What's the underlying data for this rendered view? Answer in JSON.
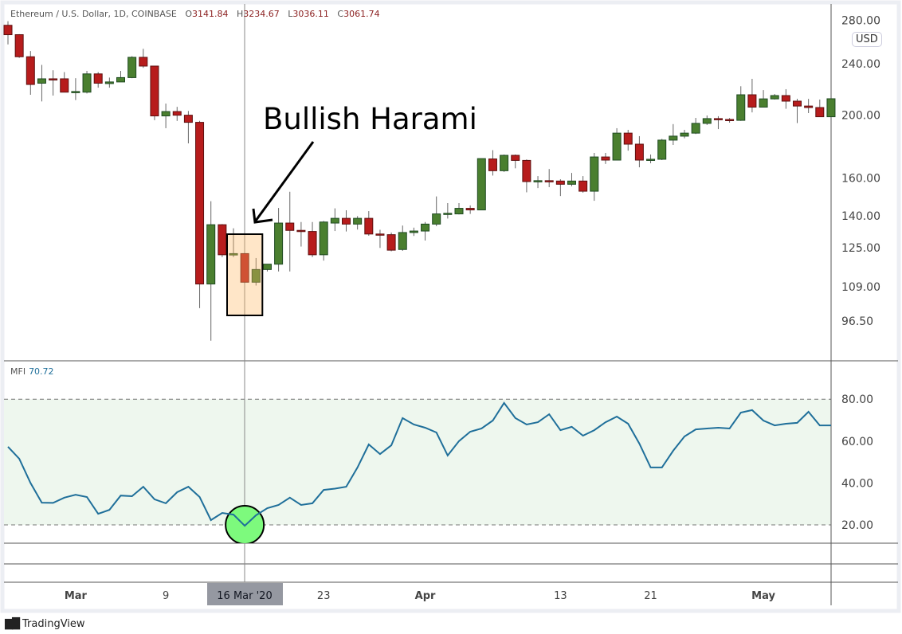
{
  "header": {
    "symbol": "Ethereum / U.S. Dollar, 1D, COINBASE",
    "ohlc": [
      {
        "k": "O",
        "v": "3141.84"
      },
      {
        "k": "H",
        "v": "3234.67"
      },
      {
        "k": "L",
        "v": "3036.11"
      },
      {
        "k": "C",
        "v": "3061.74"
      }
    ]
  },
  "currency_badge": "USD",
  "annotation": {
    "text": "Bullish Harami"
  },
  "mfi": {
    "label": "MFI",
    "value": "70.72"
  },
  "crosshair_label": "16 Mar '20",
  "branding": "TradingView",
  "colors": {
    "up": "#4a7f2f",
    "down": "#b71c1c",
    "mfi_line": "#1f6f9a",
    "mfi_band": "#eef7ee",
    "highlight_box": "#ffe3bf",
    "highlight_circle": "#7dfa7d"
  },
  "chart_data": [
    {
      "type": "candlestick",
      "scale": "log",
      "y_ticks": [
        "280.00",
        "240.00",
        "200.00",
        "160.00",
        "140.00",
        "125.00",
        "109.00",
        "96.50"
      ],
      "y_tick_values": [
        280,
        240,
        200,
        160,
        140,
        125,
        109,
        96.5
      ],
      "x_ticks": [
        {
          "label": "Mar",
          "date": "2020-03-01"
        },
        {
          "label": "9",
          "date": "2020-03-09"
        },
        {
          "label": "23",
          "date": "2020-03-23"
        },
        {
          "label": "Apr",
          "date": "2020-04-01"
        },
        {
          "label": "13",
          "date": "2020-04-13"
        },
        {
          "label": "21",
          "date": "2020-04-21"
        },
        {
          "label": "May",
          "date": "2020-05-01"
        }
      ],
      "crosshair_date": "2020-03-16",
      "highlight_range": [
        "2020-03-15",
        "2020-03-17"
      ],
      "x": [
        "2020-02-24",
        "2020-02-25",
        "2020-02-26",
        "2020-02-27",
        "2020-02-28",
        "2020-02-29",
        "2020-03-01",
        "2020-03-02",
        "2020-03-03",
        "2020-03-04",
        "2020-03-05",
        "2020-03-06",
        "2020-03-07",
        "2020-03-08",
        "2020-03-09",
        "2020-03-10",
        "2020-03-11",
        "2020-03-12",
        "2020-03-13",
        "2020-03-14",
        "2020-03-15",
        "2020-03-16",
        "2020-03-17",
        "2020-03-18",
        "2020-03-19",
        "2020-03-20",
        "2020-03-21",
        "2020-03-22",
        "2020-03-23",
        "2020-03-24",
        "2020-03-25",
        "2020-03-26",
        "2020-03-27",
        "2020-03-28",
        "2020-03-29",
        "2020-03-30",
        "2020-03-31",
        "2020-04-01",
        "2020-04-02",
        "2020-04-03",
        "2020-04-04",
        "2020-04-05",
        "2020-04-06",
        "2020-04-07",
        "2020-04-08",
        "2020-04-09",
        "2020-04-10",
        "2020-04-11",
        "2020-04-12",
        "2020-04-13",
        "2020-04-14",
        "2020-04-15",
        "2020-04-16",
        "2020-04-17",
        "2020-04-18",
        "2020-04-19",
        "2020-04-20",
        "2020-04-21",
        "2020-04-22",
        "2020-04-23",
        "2020-04-24",
        "2020-04-25",
        "2020-04-26",
        "2020-04-27",
        "2020-04-28",
        "2020-04-29",
        "2020-04-30",
        "2020-05-01",
        "2020-05-02",
        "2020-05-03",
        "2020-05-04",
        "2020-05-05",
        "2020-05-06",
        "2020-05-07"
      ],
      "ohlc": [
        [
          275,
          279,
          257,
          266
        ],
        [
          266,
          266.5,
          245,
          246
        ],
        [
          246,
          251,
          215,
          223
        ],
        [
          224,
          239,
          210,
          227.5
        ],
        [
          227.5,
          234.5,
          214.4,
          227
        ],
        [
          227.5,
          233,
          217,
          217
        ],
        [
          217,
          228,
          211,
          217.5
        ],
        [
          217,
          234,
          216,
          231.5
        ],
        [
          231.5,
          233,
          220.5,
          224
        ],
        [
          223.7,
          228.5,
          220.5,
          225
        ],
        [
          225,
          234,
          225,
          228.5
        ],
        [
          228.5,
          246.5,
          228,
          245.5
        ],
        [
          245.5,
          253,
          236.5,
          238
        ],
        [
          238,
          238,
          196.5,
          199.5
        ],
        [
          199.5,
          208.4,
          191,
          202.6
        ],
        [
          202.6,
          206,
          196,
          200
        ],
        [
          200,
          203,
          181,
          195
        ],
        [
          195,
          196,
          101,
          110
        ],
        [
          110,
          147.5,
          90,
          135.7
        ],
        [
          135.7,
          136,
          121,
          122
        ],
        [
          121.9,
          134,
          121,
          122.5
        ],
        [
          122.5,
          122.5,
          110.7,
          110.7
        ],
        [
          110.7,
          120.6,
          109.4,
          115.8
        ],
        [
          115.8,
          118,
          115,
          118
        ],
        [
          118,
          144,
          115,
          136.5
        ],
        [
          136.5,
          152.5,
          115,
          133
        ],
        [
          133,
          137,
          125.6,
          132.5
        ],
        [
          132.5,
          137,
          121,
          122
        ],
        [
          122,
          137.5,
          119.5,
          137
        ],
        [
          136.5,
          143.8,
          132.7,
          138.8
        ],
        [
          138.8,
          142.8,
          132.5,
          136
        ],
        [
          136,
          139.9,
          133.4,
          138.8
        ],
        [
          138.8,
          142.4,
          130.5,
          131.3
        ],
        [
          131.3,
          133.3,
          125,
          131
        ],
        [
          131,
          132,
          123.5,
          124
        ],
        [
          124.3,
          135.3,
          123.7,
          132
        ],
        [
          132,
          134.3,
          130.4,
          132.7
        ],
        [
          132.7,
          137,
          128.3,
          136
        ],
        [
          136,
          150,
          135,
          141
        ],
        [
          141,
          146.5,
          138.7,
          141.3
        ],
        [
          141,
          146.5,
          140.7,
          143.8
        ],
        [
          143.8,
          145.3,
          141,
          143
        ],
        [
          143,
          171,
          143,
          171.5
        ],
        [
          171.3,
          176.7,
          161.5,
          164.3
        ],
        [
          164.3,
          174,
          163.6,
          173.5
        ],
        [
          173.5,
          174,
          165.7,
          170.4
        ],
        [
          170.4,
          171,
          152.2,
          158.1
        ],
        [
          158.4,
          161.2,
          154.5,
          158.6
        ],
        [
          158.6,
          165.3,
          155,
          158.4
        ],
        [
          158.4,
          159.4,
          150.2,
          156.6
        ],
        [
          156.6,
          163,
          155.5,
          158.4
        ],
        [
          158.4,
          161.2,
          152,
          152.8
        ],
        [
          152.8,
          175,
          147.7,
          172.5
        ],
        [
          172.5,
          175,
          168.3,
          170.6
        ],
        [
          170.6,
          191,
          170.6,
          187.7
        ],
        [
          187.7,
          189.9,
          176.4,
          180.5
        ],
        [
          180.5,
          185.7,
          166.3,
          170.6
        ],
        [
          170.6,
          174,
          168.7,
          171.1
        ],
        [
          171.1,
          183.9,
          170.6,
          183.1
        ],
        [
          183.1,
          193.8,
          180,
          185.7
        ],
        [
          185.7,
          189.9,
          184.3,
          187.7
        ],
        [
          187.7,
          198.1,
          187.1,
          194.3
        ],
        [
          194.3,
          199.8,
          193.2,
          197.6
        ],
        [
          197.6,
          199.3,
          190.4,
          197
        ],
        [
          197,
          198,
          194.8,
          196.4
        ],
        [
          196.4,
          221.6,
          196,
          215
        ],
        [
          215,
          227.5,
          202,
          205.8
        ],
        [
          205.8,
          218.6,
          205.8,
          211.9
        ],
        [
          211.9,
          215.6,
          211.4,
          214.4
        ],
        [
          214.4,
          219.3,
          204.6,
          210.2
        ],
        [
          210.2,
          212,
          194.5,
          206.6
        ],
        [
          206.6,
          211.9,
          201.5,
          205.5
        ],
        [
          205.5,
          211.4,
          198.7,
          198.9
        ],
        [
          198.9,
          212,
          198,
          212
        ]
      ]
    },
    {
      "type": "line",
      "name": "MFI",
      "y_ticks": [
        "80.00",
        "60.00",
        "40.00",
        "20.00"
      ],
      "y_tick_values": [
        80,
        60,
        40,
        20
      ],
      "bands": [
        20,
        80
      ],
      "values": [
        57.3,
        51.6,
        40,
        30.6,
        30.5,
        33,
        34.4,
        33.3,
        25.3,
        27.2,
        34,
        33.7,
        38.2,
        32.2,
        30.3,
        35.6,
        38.2,
        33.3,
        22.3,
        25.7,
        24.9,
        19.6,
        24.6,
        28,
        29.5,
        33,
        29.5,
        30.3,
        36.7,
        37.3,
        38.2,
        47.4,
        58.4,
        53.8,
        58,
        71,
        67.9,
        66.4,
        64.1,
        53.1,
        60,
        64.5,
        66,
        69.8,
        78.2,
        71,
        67.9,
        69,
        72.8,
        65.2,
        66.8,
        62.6,
        65.2,
        69,
        71.7,
        68.3,
        58.8,
        47.4,
        47.4,
        55.4,
        62.2,
        65.6,
        66,
        66.4,
        66,
        73.6,
        74.8,
        69.8,
        67.5,
        68.3,
        68.7,
        74,
        67.5,
        67.5
      ]
    }
  ]
}
